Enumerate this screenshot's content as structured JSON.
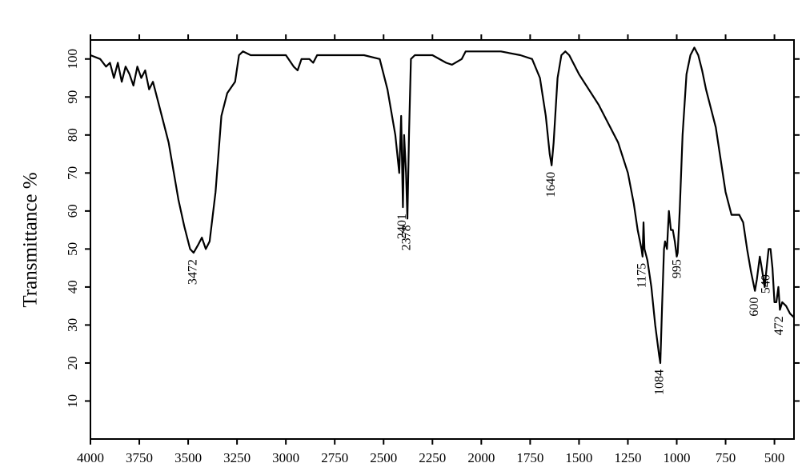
{
  "chart_data": {
    "type": "line",
    "ylabel": "Transmittance %",
    "x": [
      4000,
      3950,
      3920,
      3900,
      3880,
      3860,
      3840,
      3820,
      3800,
      3780,
      3760,
      3740,
      3720,
      3700,
      3680,
      3650,
      3600,
      3550,
      3520,
      3490,
      3472,
      3450,
      3430,
      3410,
      3390,
      3360,
      3330,
      3300,
      3260,
      3240,
      3220,
      3180,
      3000,
      2960,
      2940,
      2920,
      2880,
      2860,
      2840,
      2600,
      2520,
      2480,
      2440,
      2420,
      2410,
      2401,
      2395,
      2385,
      2378,
      2370,
      2360,
      2340,
      2250,
      2180,
      2150,
      2100,
      2080,
      1950,
      1900,
      1800,
      1740,
      1700,
      1670,
      1650,
      1640,
      1630,
      1610,
      1590,
      1570,
      1550,
      1500,
      1400,
      1300,
      1250,
      1220,
      1200,
      1180,
      1175,
      1170,
      1165,
      1150,
      1130,
      1110,
      1090,
      1084,
      1075,
      1065,
      1060,
      1050,
      1040,
      1030,
      1020,
      1010,
      1000,
      995,
      985,
      970,
      950,
      930,
      910,
      890,
      870,
      850,
      800,
      750,
      720,
      680,
      660,
      640,
      620,
      600,
      590,
      575,
      565,
      550,
      540,
      530,
      520,
      510,
      500,
      490,
      480,
      472,
      460,
      440,
      420,
      400
    ],
    "values": [
      101,
      100,
      98,
      99,
      95,
      99,
      94,
      98,
      96,
      93,
      98,
      95,
      97,
      92,
      94,
      88,
      78,
      63,
      56,
      50,
      49,
      51,
      53,
      50,
      52,
      65,
      85,
      91,
      94,
      101,
      102,
      101,
      101,
      98,
      97,
      100,
      100,
      99,
      101,
      101,
      100,
      92,
      80,
      70,
      85,
      61,
      80,
      70,
      58,
      80,
      100,
      101,
      101,
      99,
      98.5,
      100,
      102,
      102,
      102,
      101,
      100,
      95,
      85,
      75,
      72,
      78,
      95,
      101,
      102,
      101,
      96,
      88,
      78,
      70,
      62,
      55,
      50,
      48,
      57,
      50,
      47,
      40,
      30,
      22,
      20,
      35,
      50,
      52,
      50,
      60,
      55,
      55,
      52,
      48,
      49,
      60,
      80,
      96,
      101,
      103,
      101,
      97,
      92,
      82,
      65,
      59,
      59,
      57,
      50,
      44,
      39,
      42,
      48,
      45,
      40,
      45,
      50,
      50,
      45,
      36,
      36,
      40,
      34,
      36,
      35,
      33,
      32
    ],
    "color": "#000000",
    "xlim": [
      4000,
      400
    ],
    "ylim": [
      0,
      105
    ],
    "xticks": [
      4000,
      3750,
      3500,
      3250,
      3000,
      2750,
      2500,
      2250,
      2000,
      1750,
      1500,
      1250,
      1000,
      750,
      500
    ],
    "yticks": [
      10,
      20,
      30,
      40,
      50,
      60,
      70,
      80,
      90,
      100
    ],
    "annotations": [
      {
        "x": 3472,
        "y": 49
      },
      {
        "x": 2401,
        "y": 61
      },
      {
        "x": 2378,
        "y": 58
      },
      {
        "x": 1640,
        "y": 72
      },
      {
        "x": 1175,
        "y": 48
      },
      {
        "x": 1084,
        "y": 20
      },
      {
        "x": 995,
        "y": 49
      },
      {
        "x": 600,
        "y": 39
      },
      {
        "x": 540,
        "y": 45
      },
      {
        "x": 472,
        "y": 34
      }
    ]
  }
}
